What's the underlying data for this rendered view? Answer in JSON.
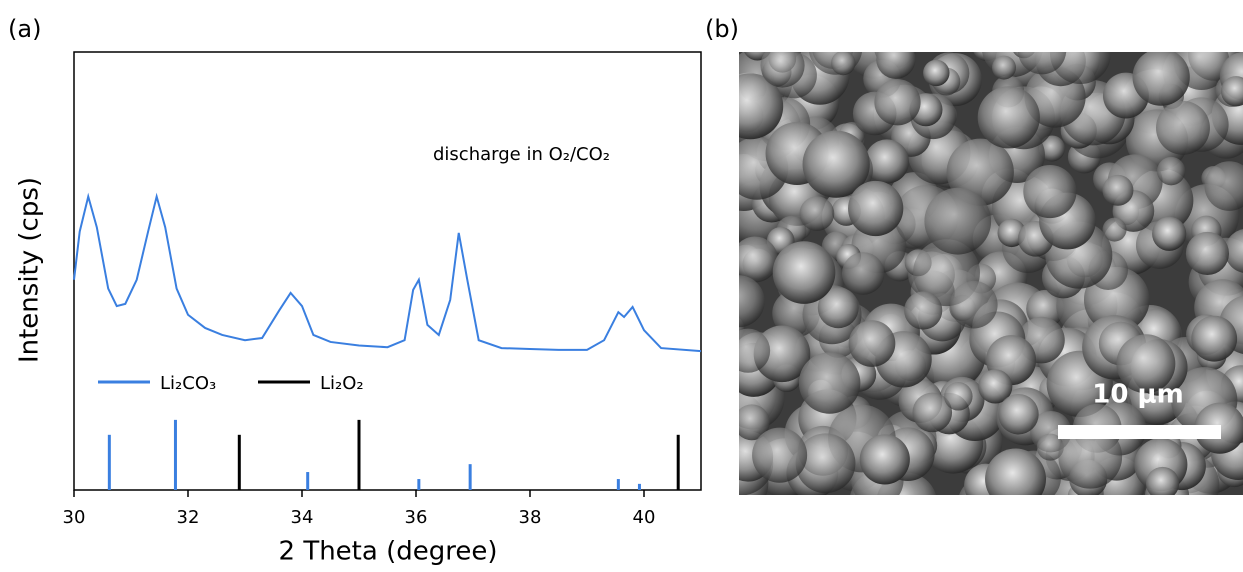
{
  "panel_labels": [
    "(a)",
    "(b)"
  ],
  "chart_data": {
    "type": "line",
    "x_label": "2 Theta (degree)",
    "y_label": "Intensity (cps)",
    "annotation": "discharge in O₂/CO₂",
    "xlim": [
      30,
      41
    ],
    "xticks": [
      30,
      32,
      34,
      36,
      38,
      40
    ],
    "ylim": [
      0,
      100
    ],
    "x": [
      30,
      30.1,
      30.25,
      30.4,
      30.6,
      30.75,
      30.9,
      31.1,
      31.3,
      31.45,
      31.6,
      31.8,
      32.0,
      32.3,
      32.6,
      33.0,
      33.3,
      33.6,
      33.8,
      34.0,
      34.2,
      34.5,
      35.0,
      35.5,
      35.8,
      35.95,
      36.05,
      36.2,
      36.4,
      36.6,
      36.75,
      36.9,
      37.1,
      37.5,
      38.0,
      38.5,
      39.0,
      39.3,
      39.55,
      39.65,
      39.8,
      40.0,
      40.3,
      41.0
    ],
    "series": [
      {
        "color": "#3a7fe0",
        "values": [
          48,
          59,
          67,
          60,
          46,
          42,
          42.5,
          48,
          59,
          67,
          60,
          46,
          40,
          37,
          35.4,
          34.2,
          34.7,
          41,
          45,
          42,
          35.4,
          33.8,
          33,
          32.6,
          34.2,
          45.7,
          48,
          37.7,
          35.4,
          43.4,
          58.7,
          48,
          34.2,
          32.4,
          32.2,
          32,
          32,
          34.2,
          40.6,
          39.5,
          41.8,
          36.5,
          32.4,
          31.7
        ]
      }
    ],
    "references": [
      {
        "name": "Li₂CO₃",
        "color": "#3a7fe0",
        "x": [
          30.62,
          31.78,
          34.1,
          36.05,
          36.95,
          39.55,
          39.92
        ],
        "values": [
          12.6,
          16,
          4.1,
          2.5,
          5.9,
          2.5,
          1.4
        ]
      },
      {
        "name": "Li₂O₂",
        "color": "#000000",
        "x": [
          32.9,
          35.0,
          40.6
        ],
        "values": [
          12.6,
          16,
          12.6
        ]
      }
    ]
  },
  "image": {
    "scale_bar": "10 μm"
  }
}
